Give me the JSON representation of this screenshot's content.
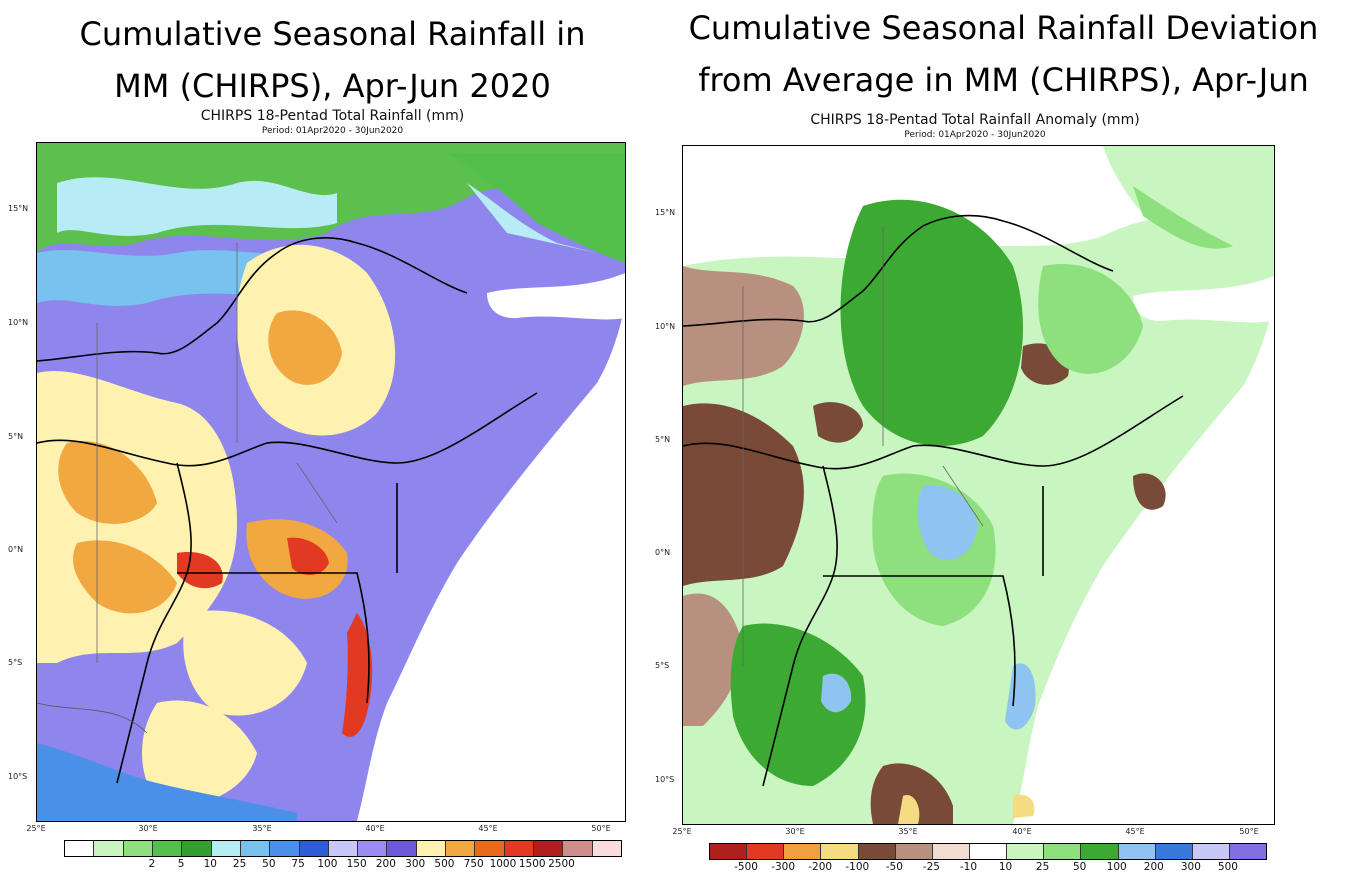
{
  "left": {
    "headline": [
      "Cumulative Seasonal Rainfall in",
      "MM (CHIRPS), Apr-Jun 2020"
    ],
    "map_title": "CHIRPS 18-Pentad Total Rainfall (mm)",
    "period": "Period: 01Apr2020 - 30Jun2020",
    "lat_labels": [
      "15°N",
      "10°N",
      "5°N",
      "0°N",
      "5°S",
      "10°S"
    ],
    "lon_labels": [
      "25°E",
      "30°E",
      "35°E",
      "40°E",
      "45°E",
      "50°E"
    ],
    "colorbar": {
      "labels": [
        "2",
        "5",
        "10",
        "25",
        "50",
        "75",
        "100",
        "150",
        "200",
        "300",
        "500",
        "750",
        "1000",
        "1500",
        "2500"
      ],
      "colors": [
        "#ffffff",
        "#c8f5c0",
        "#8ee07e",
        "#52c04a",
        "#32a02e",
        "#b8ecf5",
        "#78c2f0",
        "#4a90e8",
        "#2d5ed8",
        "#c8c8f8",
        "#9a8cf0",
        "#6e5ad8",
        "#fff2b0",
        "#f2a840",
        "#e86a1a",
        "#e23a22",
        "#b01e1e",
        "#d08c8c",
        "#fadcdc"
      ]
    }
  },
  "right": {
    "headline": [
      "Cumulative Seasonal Rainfall Deviation",
      "from Average in MM (CHIRPS), Apr-Jun"
    ],
    "map_title": "CHIRPS 18-Pentad Total Rainfall Anomaly (mm)",
    "period": "Period: 01Apr2020 - 30Jun2020",
    "lat_labels": [
      "15°N",
      "10°N",
      "5°N",
      "0°N",
      "5°S",
      "10°S"
    ],
    "lon_labels": [
      "25°E",
      "30°E",
      "35°E",
      "40°E",
      "45°E",
      "50°E"
    ],
    "colorbar": {
      "labels": [
        "-500",
        "-300",
        "-200",
        "-100",
        "-50",
        "-25",
        "-10",
        "10",
        "25",
        "50",
        "100",
        "200",
        "300",
        "500"
      ],
      "colors": [
        "#b0201a",
        "#e23a22",
        "#f0a040",
        "#f5dc80",
        "#7a4a38",
        "#b89080",
        "#f0dcd0",
        "#ffffff",
        "#c8f5c0",
        "#8ee07e",
        "#3caa32",
        "#90c4f0",
        "#3a78d8",
        "#c8c8f8",
        "#8070e0"
      ]
    }
  }
}
